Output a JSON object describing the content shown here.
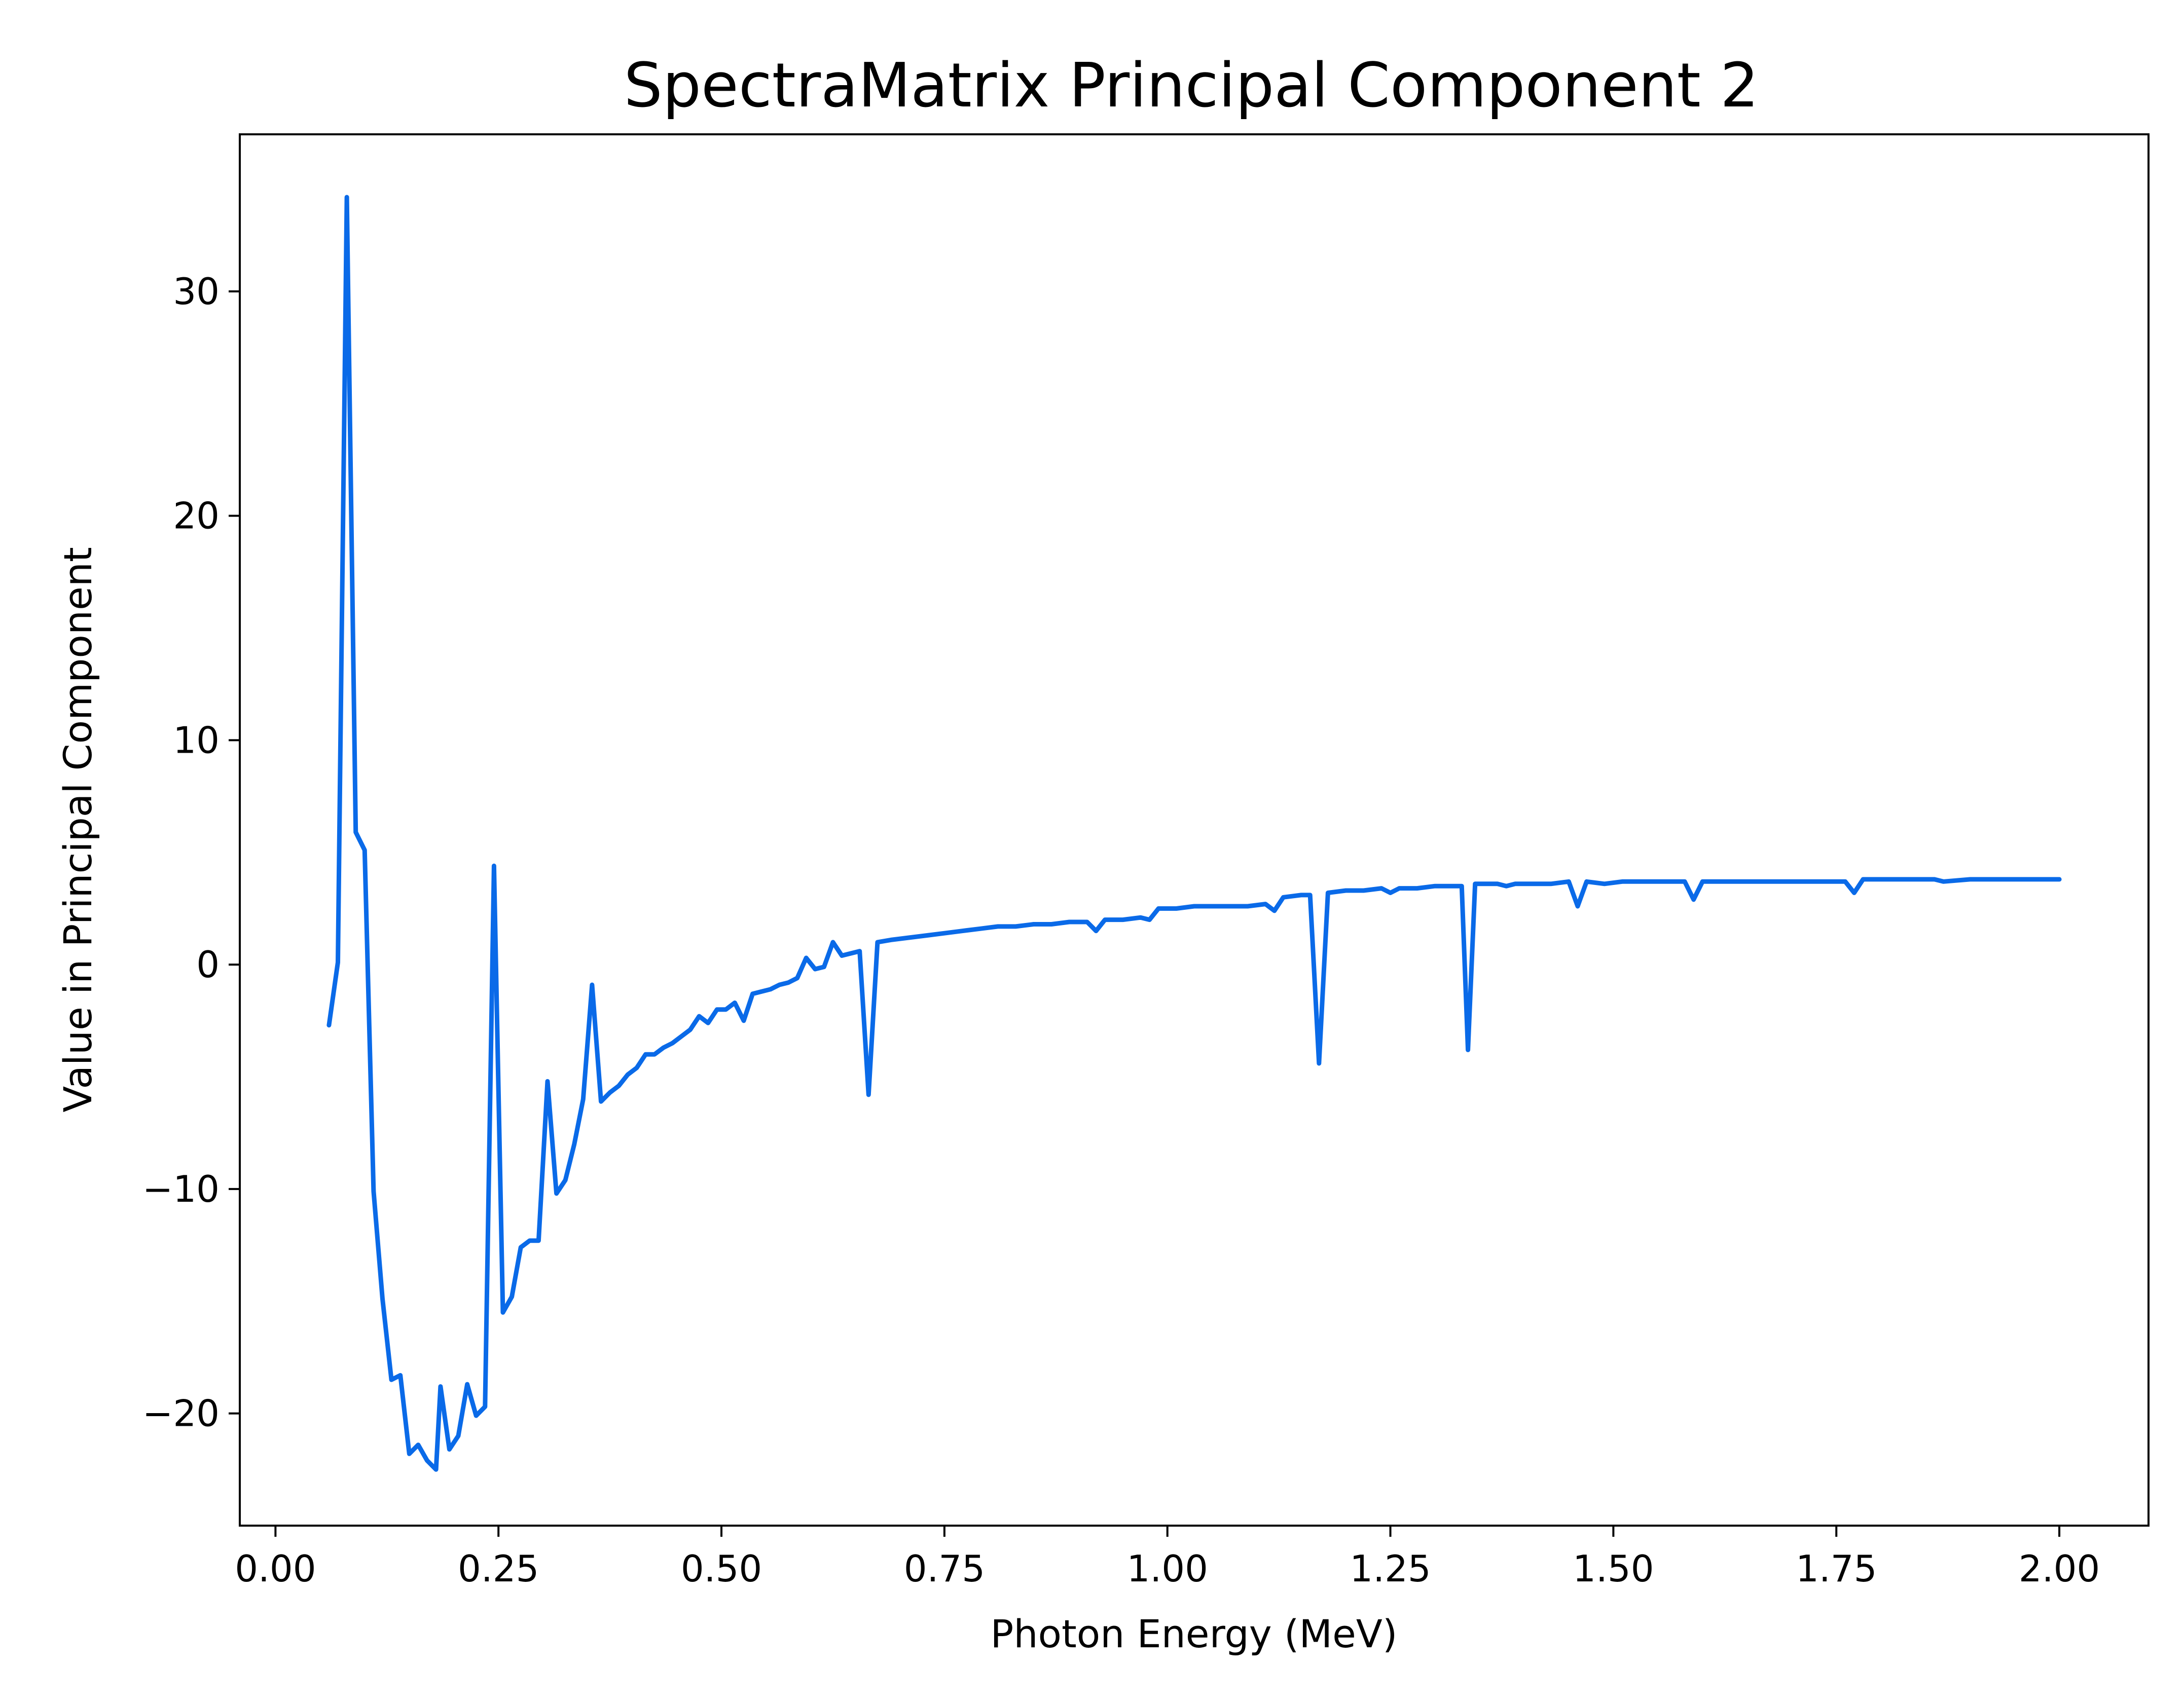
{
  "chart_data": {
    "type": "line",
    "title": "SpectraMatrix Principal Component 2",
    "xlabel": "Photon Energy (MeV)",
    "ylabel": "Value in Principal Component",
    "xlim": [
      -0.04,
      2.1
    ],
    "ylim": [
      -25,
      37
    ],
    "x_ticks": [
      0.0,
      0.25,
      0.5,
      0.75,
      1.0,
      1.25,
      1.5,
      1.75,
      2.0
    ],
    "x_tick_labels": [
      "0.00",
      "0.25",
      "0.50",
      "0.75",
      "1.00",
      "1.25",
      "1.50",
      "1.75",
      "2.00"
    ],
    "y_ticks": [
      -20,
      -10,
      0,
      10,
      20,
      30
    ],
    "y_tick_labels": [
      "−20",
      "−10",
      "0",
      "10",
      "20",
      "30"
    ],
    "grid": false,
    "line_color": "#0a6ae8",
    "series": [
      {
        "x": [
          0.06,
          0.07,
          0.08,
          0.09,
          0.1,
          0.11,
          0.12,
          0.13,
          0.14,
          0.15,
          0.16,
          0.17,
          0.18,
          0.185,
          0.195,
          0.205,
          0.215,
          0.225,
          0.235,
          0.245,
          0.255,
          0.265,
          0.275,
          0.285,
          0.295,
          0.305,
          0.315,
          0.325,
          0.335,
          0.345,
          0.355,
          0.365,
          0.375,
          0.385,
          0.395,
          0.405,
          0.415,
          0.425,
          0.435,
          0.445,
          0.455,
          0.465,
          0.475,
          0.485,
          0.495,
          0.505,
          0.515,
          0.525,
          0.535,
          0.545,
          0.555,
          0.565,
          0.575,
          0.585,
          0.595,
          0.605,
          0.615,
          0.625,
          0.635,
          0.645,
          0.655,
          0.665,
          0.675,
          0.69,
          0.71,
          0.73,
          0.75,
          0.77,
          0.79,
          0.81,
          0.83,
          0.85,
          0.87,
          0.89,
          0.91,
          0.92,
          0.93,
          0.95,
          0.97,
          0.98,
          0.99,
          1.01,
          1.03,
          1.05,
          1.07,
          1.09,
          1.11,
          1.12,
          1.13,
          1.15,
          1.16,
          1.17,
          1.18,
          1.2,
          1.22,
          1.24,
          1.25,
          1.26,
          1.28,
          1.3,
          1.32,
          1.33,
          1.337,
          1.345,
          1.37,
          1.38,
          1.39,
          1.41,
          1.43,
          1.45,
          1.46,
          1.47,
          1.49,
          1.51,
          1.53,
          1.55,
          1.58,
          1.59,
          1.6,
          1.63,
          1.66,
          1.7,
          1.73,
          1.75,
          1.76,
          1.77,
          1.78,
          1.82,
          1.86,
          1.87,
          1.9,
          1.95,
          2.0
        ],
        "values": [
          -2.7,
          0.1,
          34.2,
          5.9,
          5.1,
          -10.1,
          -14.9,
          -18.5,
          -18.3,
          -21.8,
          -21.4,
          -22.1,
          -22.5,
          -18.8,
          -21.6,
          -21.0,
          -18.7,
          -20.1,
          -19.7,
          4.4,
          -15.5,
          -14.8,
          -12.6,
          -12.3,
          -12.3,
          -5.2,
          -10.2,
          -9.6,
          -8.0,
          -6.0,
          -0.9,
          -6.1,
          -5.7,
          -5.4,
          -4.9,
          -4.6,
          -4.0,
          -4.0,
          -3.7,
          -3.5,
          -3.2,
          -2.9,
          -2.3,
          -2.6,
          -2.0,
          -2.0,
          -1.7,
          -2.5,
          -1.3,
          -1.2,
          -1.1,
          -0.9,
          -0.8,
          -0.6,
          0.3,
          -0.2,
          -0.1,
          1.0,
          0.4,
          0.5,
          0.6,
          -5.8,
          1.0,
          1.1,
          1.2,
          1.3,
          1.4,
          1.5,
          1.6,
          1.7,
          1.7,
          1.8,
          1.8,
          1.9,
          1.9,
          1.5,
          2.0,
          2.0,
          2.1,
          2.0,
          2.5,
          2.5,
          2.6,
          2.6,
          2.6,
          2.6,
          2.7,
          2.4,
          3.0,
          3.1,
          3.1,
          -4.4,
          3.2,
          3.3,
          3.3,
          3.4,
          3.2,
          3.4,
          3.4,
          3.5,
          3.5,
          3.5,
          -3.8,
          3.6,
          3.6,
          3.5,
          3.6,
          3.6,
          3.6,
          3.7,
          2.6,
          3.7,
          3.6,
          3.7,
          3.7,
          3.7,
          3.7,
          2.9,
          3.7,
          3.7,
          3.7,
          3.7,
          3.7,
          3.7,
          3.7,
          3.2,
          3.8,
          3.8,
          3.8,
          3.7,
          3.8,
          3.8,
          3.8
        ]
      }
    ]
  }
}
